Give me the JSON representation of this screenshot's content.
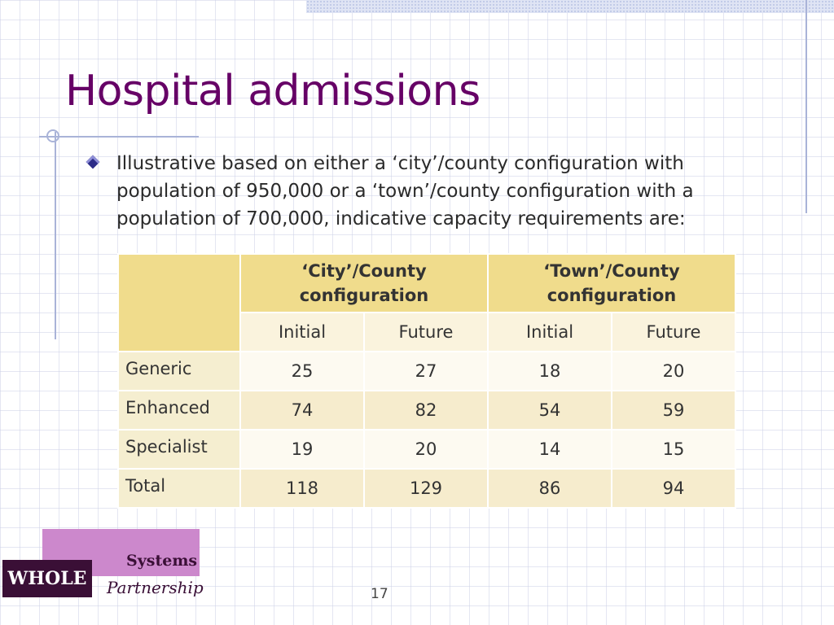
{
  "slide": {
    "title": "Hospital admissions",
    "bullet": "Illustrative based on either a ‘city’/county configuration with population of 950,000 or a ‘town’/county configuration with a population of 700,000, indicative capacity requirements are:",
    "page_number": "17"
  },
  "table": {
    "group_headers": [
      "‘City’/County configuration",
      "‘Town’/County configuration"
    ],
    "sub_headers": [
      "Initial",
      "Future",
      "Initial",
      "Future"
    ],
    "rows": [
      {
        "label": "Generic",
        "values": [
          "25",
          "27",
          "18",
          "20"
        ]
      },
      {
        "label": "Enhanced",
        "values": [
          "74",
          "82",
          "54",
          "59"
        ]
      },
      {
        "label": "Specialist",
        "values": [
          "19",
          "20",
          "14",
          "15"
        ]
      },
      {
        "label": "Total",
        "values": [
          "118",
          "129",
          "86",
          "94"
        ]
      }
    ]
  },
  "logo": {
    "line1": "Systems",
    "line2": "WHOLE",
    "line3": "Partnership"
  },
  "colors": {
    "title": "#660066",
    "header_fill": "#f0dc8c",
    "logo_pink": "#cc88cc",
    "logo_dark": "#3a0f36"
  }
}
